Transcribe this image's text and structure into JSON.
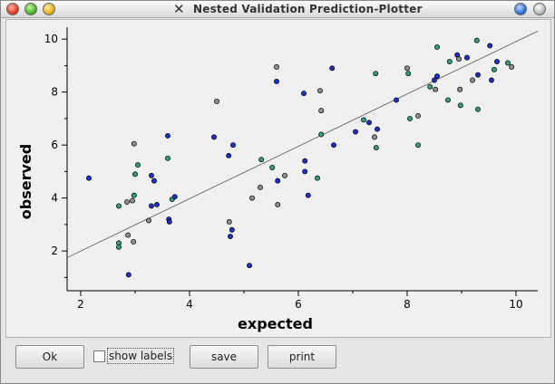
{
  "window": {
    "title": "Nested Validation Prediction-Plotter"
  },
  "controls": {
    "ok_label": "Ok",
    "show_labels_label": "show labels",
    "show_labels_checked": false,
    "save_label": "save",
    "print_label": "print"
  },
  "chart_data": {
    "type": "scatter",
    "xlabel": "expected",
    "ylabel": "observed",
    "xlim": [
      1.75,
      10.4
    ],
    "ylim": [
      0.5,
      10.45
    ],
    "xticks": [
      2,
      4,
      6,
      8,
      10
    ],
    "yticks": [
      2,
      4,
      6,
      8,
      10
    ],
    "grid": false,
    "fit_line": {
      "x": [
        1.75,
        10.4
      ],
      "y": [
        1.75,
        10.3
      ]
    },
    "colors": {
      "blue": "#1a2fd6",
      "teal": "#2f9f7d",
      "grey": "#8f8f8f"
    },
    "points": [
      {
        "x": 2.15,
        "y": 4.75,
        "c": "blue"
      },
      {
        "x": 2.7,
        "y": 3.7,
        "c": "teal"
      },
      {
        "x": 2.7,
        "y": 2.3,
        "c": "teal"
      },
      {
        "x": 2.7,
        "y": 2.15,
        "c": "teal"
      },
      {
        "x": 2.85,
        "y": 3.85,
        "c": "grey"
      },
      {
        "x": 2.87,
        "y": 2.6,
        "c": "grey"
      },
      {
        "x": 2.88,
        "y": 1.1,
        "c": "blue"
      },
      {
        "x": 2.95,
        "y": 3.9,
        "c": "grey"
      },
      {
        "x": 2.97,
        "y": 2.35,
        "c": "grey"
      },
      {
        "x": 2.98,
        "y": 6.05,
        "c": "grey"
      },
      {
        "x": 2.98,
        "y": 4.1,
        "c": "teal"
      },
      {
        "x": 3.0,
        "y": 4.9,
        "c": "teal"
      },
      {
        "x": 3.05,
        "y": 5.25,
        "c": "teal"
      },
      {
        "x": 3.25,
        "y": 3.15,
        "c": "grey"
      },
      {
        "x": 3.3,
        "y": 3.7,
        "c": "blue"
      },
      {
        "x": 3.3,
        "y": 4.85,
        "c": "blue"
      },
      {
        "x": 3.35,
        "y": 4.65,
        "c": "blue"
      },
      {
        "x": 3.4,
        "y": 3.75,
        "c": "blue"
      },
      {
        "x": 3.6,
        "y": 6.35,
        "c": "blue"
      },
      {
        "x": 3.6,
        "y": 5.5,
        "c": "teal"
      },
      {
        "x": 3.62,
        "y": 3.2,
        "c": "blue"
      },
      {
        "x": 3.63,
        "y": 3.1,
        "c": "blue"
      },
      {
        "x": 3.68,
        "y": 3.95,
        "c": "teal"
      },
      {
        "x": 3.73,
        "y": 4.05,
        "c": "blue"
      },
      {
        "x": 4.45,
        "y": 6.3,
        "c": "blue"
      },
      {
        "x": 4.5,
        "y": 7.65,
        "c": "grey"
      },
      {
        "x": 4.72,
        "y": 5.6,
        "c": "blue"
      },
      {
        "x": 4.73,
        "y": 3.1,
        "c": "grey"
      },
      {
        "x": 4.75,
        "y": 2.55,
        "c": "blue"
      },
      {
        "x": 4.78,
        "y": 2.8,
        "c": "blue"
      },
      {
        "x": 4.8,
        "y": 6.0,
        "c": "blue"
      },
      {
        "x": 5.1,
        "y": 1.45,
        "c": "blue"
      },
      {
        "x": 5.15,
        "y": 4.0,
        "c": "grey"
      },
      {
        "x": 5.3,
        "y": 4.4,
        "c": "grey"
      },
      {
        "x": 5.32,
        "y": 5.45,
        "c": "teal"
      },
      {
        "x": 5.52,
        "y": 5.15,
        "c": "teal"
      },
      {
        "x": 5.6,
        "y": 8.4,
        "c": "blue"
      },
      {
        "x": 5.6,
        "y": 8.95,
        "c": "grey"
      },
      {
        "x": 5.62,
        "y": 4.65,
        "c": "blue"
      },
      {
        "x": 5.62,
        "y": 3.75,
        "c": "grey"
      },
      {
        "x": 5.75,
        "y": 4.85,
        "c": "grey"
      },
      {
        "x": 6.1,
        "y": 7.95,
        "c": "blue"
      },
      {
        "x": 6.12,
        "y": 5.4,
        "c": "blue"
      },
      {
        "x": 6.12,
        "y": 5.0,
        "c": "blue"
      },
      {
        "x": 6.18,
        "y": 4.1,
        "c": "blue"
      },
      {
        "x": 6.35,
        "y": 4.75,
        "c": "teal"
      },
      {
        "x": 6.4,
        "y": 8.05,
        "c": "grey"
      },
      {
        "x": 6.42,
        "y": 7.3,
        "c": "grey"
      },
      {
        "x": 6.42,
        "y": 6.4,
        "c": "teal"
      },
      {
        "x": 6.62,
        "y": 8.9,
        "c": "blue"
      },
      {
        "x": 6.65,
        "y": 6.0,
        "c": "blue"
      },
      {
        "x": 7.05,
        "y": 6.5,
        "c": "blue"
      },
      {
        "x": 7.2,
        "y": 6.95,
        "c": "teal"
      },
      {
        "x": 7.3,
        "y": 6.85,
        "c": "blue"
      },
      {
        "x": 7.4,
        "y": 6.3,
        "c": "grey"
      },
      {
        "x": 7.42,
        "y": 8.7,
        "c": "teal"
      },
      {
        "x": 7.43,
        "y": 5.9,
        "c": "teal"
      },
      {
        "x": 7.45,
        "y": 6.6,
        "c": "blue"
      },
      {
        "x": 7.8,
        "y": 7.7,
        "c": "blue"
      },
      {
        "x": 8.0,
        "y": 8.9,
        "c": "grey"
      },
      {
        "x": 8.02,
        "y": 8.7,
        "c": "teal"
      },
      {
        "x": 8.05,
        "y": 7.0,
        "c": "teal"
      },
      {
        "x": 8.2,
        "y": 7.1,
        "c": "grey"
      },
      {
        "x": 8.2,
        "y": 6.0,
        "c": "teal"
      },
      {
        "x": 8.42,
        "y": 8.2,
        "c": "teal"
      },
      {
        "x": 8.5,
        "y": 8.45,
        "c": "blue"
      },
      {
        "x": 8.52,
        "y": 8.1,
        "c": "grey"
      },
      {
        "x": 8.55,
        "y": 9.7,
        "c": "teal"
      },
      {
        "x": 8.55,
        "y": 8.6,
        "c": "blue"
      },
      {
        "x": 8.75,
        "y": 7.7,
        "c": "teal"
      },
      {
        "x": 8.78,
        "y": 9.15,
        "c": "teal"
      },
      {
        "x": 8.92,
        "y": 9.4,
        "c": "blue"
      },
      {
        "x": 8.95,
        "y": 9.25,
        "c": "grey"
      },
      {
        "x": 8.97,
        "y": 8.1,
        "c": "grey"
      },
      {
        "x": 8.98,
        "y": 7.5,
        "c": "teal"
      },
      {
        "x": 9.1,
        "y": 9.3,
        "c": "blue"
      },
      {
        "x": 9.2,
        "y": 8.45,
        "c": "grey"
      },
      {
        "x": 9.28,
        "y": 9.95,
        "c": "teal"
      },
      {
        "x": 9.3,
        "y": 8.65,
        "c": "blue"
      },
      {
        "x": 9.3,
        "y": 7.35,
        "c": "teal"
      },
      {
        "x": 9.52,
        "y": 9.75,
        "c": "blue"
      },
      {
        "x": 9.55,
        "y": 8.45,
        "c": "blue"
      },
      {
        "x": 9.6,
        "y": 8.85,
        "c": "teal"
      },
      {
        "x": 9.65,
        "y": 9.15,
        "c": "blue"
      },
      {
        "x": 9.85,
        "y": 9.1,
        "c": "teal"
      },
      {
        "x": 9.92,
        "y": 8.95,
        "c": "grey"
      }
    ]
  }
}
